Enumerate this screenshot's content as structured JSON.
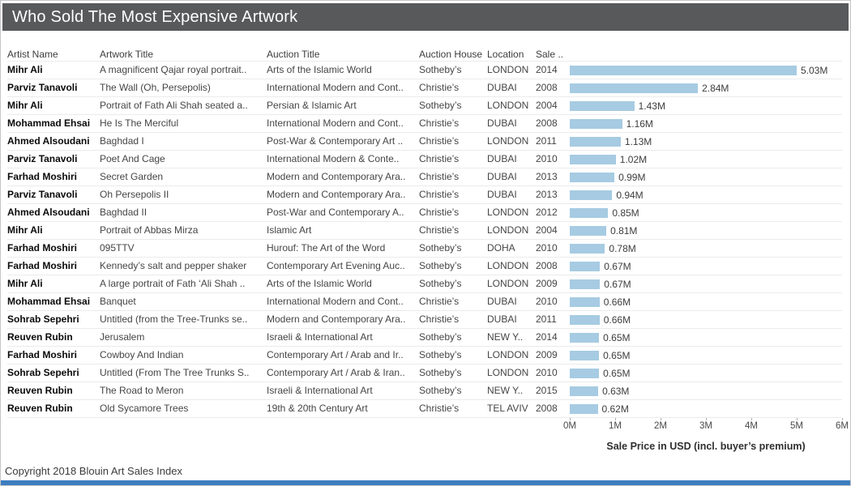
{
  "title": "Who Sold The Most Expensive Artwork",
  "table": {
    "columns": [
      "Artist Name",
      "Artwork Title",
      "Auction Title",
      "Auction House",
      "Location",
      "Sale .."
    ],
    "rows": [
      {
        "artist": "Mihr Ali",
        "artwork": "A magnificent Qajar royal portrait..",
        "auction": "Arts of the Islamic World",
        "house": "Sotheby’s",
        "location": "LONDON",
        "year": "2014"
      },
      {
        "artist": "Parviz Tanavoli",
        "artwork": "The Wall (Oh, Persepolis)",
        "auction": "International Modern and Cont..",
        "house": "Christie’s",
        "location": "DUBAI",
        "year": "2008"
      },
      {
        "artist": "Mihr Ali",
        "artwork": "Portrait of Fath Ali Shah seated a..",
        "auction": "Persian & Islamic Art",
        "house": "Sotheby’s",
        "location": "LONDON",
        "year": "2004"
      },
      {
        "artist": "Mohammad Ehsai",
        "artwork": "He Is The Merciful",
        "auction": "International Modern and Cont..",
        "house": "Christie’s",
        "location": "DUBAI",
        "year": "2008"
      },
      {
        "artist": "Ahmed Alsoudani",
        "artwork": "Baghdad I",
        "auction": "Post-War & Contemporary Art ..",
        "house": "Christie’s",
        "location": "LONDON",
        "year": "2011"
      },
      {
        "artist": "Parviz Tanavoli",
        "artwork": "Poet And Cage",
        "auction": "International Modern & Conte..",
        "house": "Christie’s",
        "location": "DUBAI",
        "year": "2010"
      },
      {
        "artist": "Farhad Moshiri",
        "artwork": "Secret Garden",
        "auction": "Modern and Contemporary Ara..",
        "house": "Christie’s",
        "location": "DUBAI",
        "year": "2013"
      },
      {
        "artist": "Parviz Tanavoli",
        "artwork": "Oh Persepolis II",
        "auction": "Modern and Contemporary Ara..",
        "house": "Christie’s",
        "location": "DUBAI",
        "year": "2013"
      },
      {
        "artist": "Ahmed Alsoudani",
        "artwork": "Baghdad II",
        "auction": "Post-War and Contemporary A..",
        "house": "Christie’s",
        "location": "LONDON",
        "year": "2012"
      },
      {
        "artist": "Mihr Ali",
        "artwork": "Portrait of Abbas Mirza",
        "auction": "Islamic Art",
        "house": "Christie’s",
        "location": "LONDON",
        "year": "2004"
      },
      {
        "artist": "Farhad Moshiri",
        "artwork": "095TTV",
        "auction": "Hurouf: The Art of the Word",
        "house": "Sotheby’s",
        "location": "DOHA",
        "year": "2010"
      },
      {
        "artist": "Farhad Moshiri",
        "artwork": "Kennedy’s salt and pepper shaker",
        "auction": "Contemporary Art Evening Auc..",
        "house": "Sotheby’s",
        "location": "LONDON",
        "year": "2008"
      },
      {
        "artist": "Mihr Ali",
        "artwork": "A large portrait of Fath ‘Ali Shah ..",
        "auction": "Arts of the Islamic World",
        "house": "Sotheby’s",
        "location": "LONDON",
        "year": "2009"
      },
      {
        "artist": "Mohammad Ehsai",
        "artwork": "Banquet",
        "auction": "International Modern and Cont..",
        "house": "Christie’s",
        "location": "DUBAI",
        "year": "2010"
      },
      {
        "artist": "Sohrab Sepehri",
        "artwork": "Untitled (from the Tree-Trunks se..",
        "auction": "Modern and Contemporary Ara..",
        "house": "Christie’s",
        "location": "DUBAI",
        "year": "2011"
      },
      {
        "artist": "Reuven Rubin",
        "artwork": "Jerusalem",
        "auction": "Israeli & International Art",
        "house": "Sotheby’s",
        "location": "NEW Y..",
        "year": "2014"
      },
      {
        "artist": "Farhad Moshiri",
        "artwork": "Cowboy And Indian",
        "auction": "Contemporary Art / Arab and Ir..",
        "house": "Sotheby’s",
        "location": "LONDON",
        "year": "2009"
      },
      {
        "artist": "Sohrab Sepehri",
        "artwork": "Untitled (From The Tree Trunks S..",
        "auction": "Contemporary Art / Arab & Iran..",
        "house": "Sotheby’s",
        "location": "LONDON",
        "year": "2010"
      },
      {
        "artist": "Reuven Rubin",
        "artwork": "The Road to Meron",
        "auction": "Israeli & International Art",
        "house": "Sotheby’s",
        "location": "NEW Y..",
        "year": "2015"
      },
      {
        "artist": "Reuven Rubin",
        "artwork": "Old Sycamore Trees",
        "auction": "19th & 20th Century Art",
        "house": "Christie’s",
        "location": "TEL AVIV",
        "year": "2008"
      }
    ]
  },
  "chart_data": {
    "type": "bar",
    "orientation": "horizontal",
    "title": "Who Sold The Most Expensive Artwork",
    "xlabel": "Sale Price in USD (incl. buyer’s premium)",
    "xlim_millions": [
      0,
      6
    ],
    "xticks": [
      "0M",
      "1M",
      "2M",
      "3M",
      "4M",
      "5M",
      "6M"
    ],
    "grid": false,
    "legend": "none",
    "categories": [
      "A magnificent Qajar royal portrait..",
      "The Wall (Oh, Persepolis)",
      "Portrait of Fath Ali Shah seated a..",
      "He Is The Merciful",
      "Baghdad I",
      "Poet And Cage",
      "Secret Garden",
      "Oh Persepolis II",
      "Baghdad II",
      "Portrait of Abbas Mirza",
      "095TTV",
      "Kennedy’s salt and pepper shaker",
      "A large portrait of Fath ‘Ali Shah ..",
      "Banquet",
      "Untitled (from the Tree-Trunks se..",
      "Jerusalem",
      "Cowboy And Indian",
      "Untitled (From The Tree Trunks S..",
      "The Road to Meron",
      "Old Sycamore Trees"
    ],
    "values_millions": [
      5.03,
      2.84,
      1.43,
      1.16,
      1.13,
      1.02,
      0.99,
      0.94,
      0.85,
      0.81,
      0.78,
      0.67,
      0.67,
      0.66,
      0.66,
      0.65,
      0.65,
      0.65,
      0.63,
      0.62
    ],
    "value_labels": [
      "5.03M",
      "2.84M",
      "1.43M",
      "1.16M",
      "1.13M",
      "1.02M",
      "0.99M",
      "0.94M",
      "0.85M",
      "0.81M",
      "0.78M",
      "0.67M",
      "0.67M",
      "0.66M",
      "0.66M",
      "0.65M",
      "0.65M",
      "0.65M",
      "0.63M",
      "0.62M"
    ]
  },
  "footer": {
    "copyright": "Copyright 2018 Blouin Art Sales Index"
  },
  "colors": {
    "title_bar_bg": "#58595b",
    "title_text": "#ffffff",
    "bar_fill": "#a6cbe2",
    "accent_strip": "#3c7dbf",
    "row_divider": "#ebebeb"
  }
}
